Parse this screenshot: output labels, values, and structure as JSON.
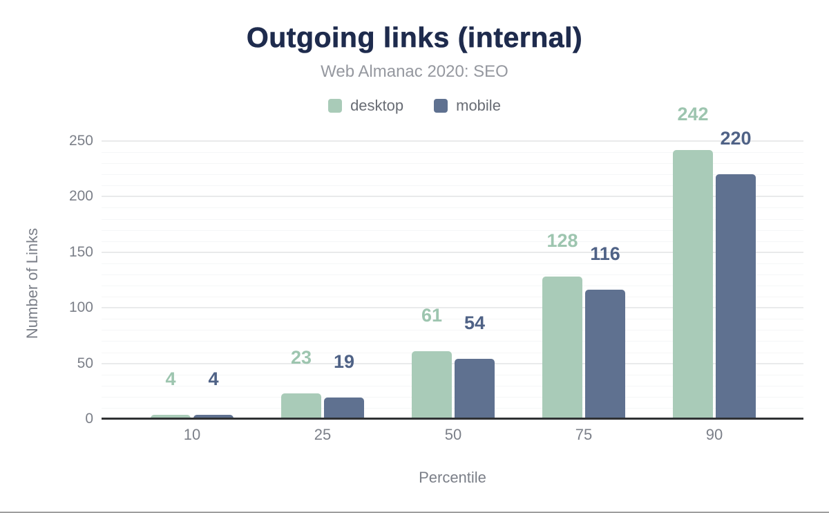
{
  "header": {
    "title": "Outgoing links (internal)",
    "subtitle": "Web Almanac 2020: SEO"
  },
  "chart_data": {
    "type": "bar",
    "title": "Outgoing links (internal)",
    "subtitle": "Web Almanac 2020: SEO",
    "xlabel": "Percentile",
    "ylabel": "Number of Links",
    "categories": [
      "10",
      "25",
      "50",
      "75",
      "90"
    ],
    "series": [
      {
        "name": "desktop",
        "values": [
          4,
          23,
          61,
          128,
          242
        ],
        "color": "#a9cbb8",
        "label_color": "#9dc5af"
      },
      {
        "name": "mobile",
        "values": [
          4,
          19,
          54,
          116,
          220
        ],
        "color": "#5f7190",
        "label_color": "#4f6286"
      }
    ],
    "ylim": [
      0,
      250
    ],
    "yticks": [
      0,
      50,
      100,
      150,
      200,
      250
    ],
    "minor_grid_step": 10,
    "grid": "horizontal",
    "legend_position": "top",
    "colors": {
      "title": "#1e2b4d",
      "subtitle": "#95989f",
      "tick_labels": "#7b7f88",
      "axis_line": "#2f3133",
      "major_grid": "#e9eaeb",
      "minor_grid": "#f5f6f7"
    }
  }
}
